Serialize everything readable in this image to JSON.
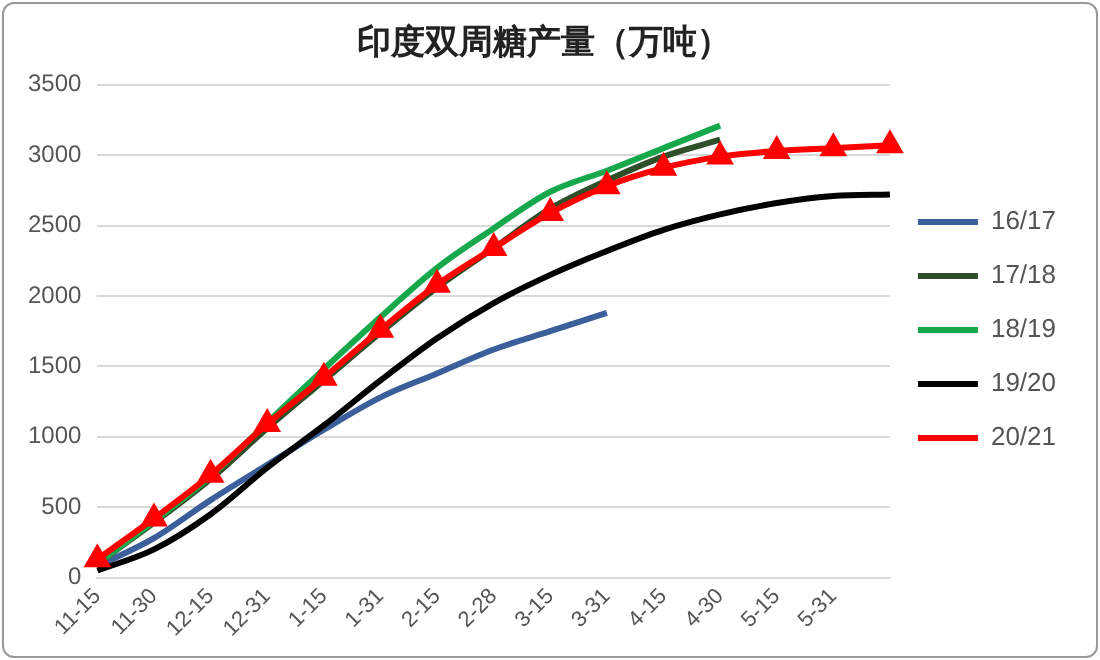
{
  "chart_data": {
    "type": "line",
    "title": "印度双周糖产量（万吨）",
    "categories": [
      "11-15",
      "11-30",
      "12-15",
      "12-31",
      "1-15",
      "1-31",
      "2-15",
      "2-28",
      "3-15",
      "3-31",
      "4-15",
      "4-30",
      "5-15",
      "5-31",
      null
    ],
    "ylim": [
      0,
      3500
    ],
    "yticks": [
      0,
      500,
      1000,
      1500,
      2000,
      2500,
      3000,
      3500
    ],
    "grid": "y",
    "legend": "right",
    "series": [
      {
        "name": "16/17",
        "color": "#3a5f9a",
        "marker": "none",
        "values": [
          80,
          280,
          550,
          800,
          1050,
          1280,
          1450,
          1620,
          1750,
          1880,
          null,
          null,
          null,
          null,
          null
        ]
      },
      {
        "name": "17/18",
        "color": "#2f4f2a",
        "marker": "none",
        "values": [
          100,
          390,
          700,
          1060,
          1400,
          1740,
          2060,
          2340,
          2620,
          2820,
          2990,
          3110,
          null,
          null,
          null
        ]
      },
      {
        "name": "18/19",
        "color": "#16a84a",
        "marker": "none",
        "values": [
          100,
          400,
          720,
          1100,
          1480,
          1850,
          2200,
          2480,
          2740,
          2890,
          3050,
          3210,
          null,
          null,
          null
        ]
      },
      {
        "name": "19/20",
        "color": "#000000",
        "marker": "none",
        "values": [
          50,
          200,
          450,
          780,
          1080,
          1400,
          1700,
          1950,
          2150,
          2320,
          2470,
          2580,
          2660,
          2710,
          2720
        ]
      },
      {
        "name": "20/21",
        "color": "#ff0000",
        "marker": "triangle",
        "values": [
          130,
          420,
          730,
          1090,
          1420,
          1760,
          2080,
          2340,
          2590,
          2780,
          2910,
          2990,
          3030,
          3050,
          3070
        ]
      }
    ]
  }
}
